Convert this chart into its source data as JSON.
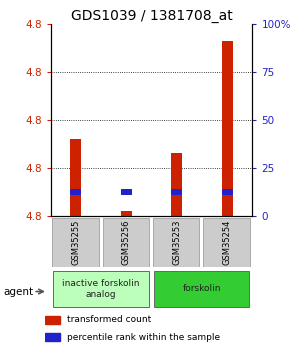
{
  "title": "GDS1039 / 1381708_at",
  "samples": [
    "GSM35255",
    "GSM35256",
    "GSM35253",
    "GSM35254"
  ],
  "y_min": 4.76,
  "y_max": 4.84,
  "y_ticks_left": [
    4.76,
    4.78,
    4.8,
    4.82,
    4.84
  ],
  "y_ticks_right": [
    0,
    25,
    50,
    75,
    100
  ],
  "y_ticks_right_labels": [
    "0",
    "25",
    "50",
    "75",
    "100%"
  ],
  "red_values": [
    4.792,
    4.762,
    4.786,
    4.833
  ],
  "blue_values": [
    4.77,
    4.77,
    4.77,
    4.77
  ],
  "bar_bottom": 4.76,
  "red_color": "#cc2200",
  "blue_color": "#2222cc",
  "groups": [
    {
      "label": "inactive forskolin\nanalog",
      "samples": [
        0,
        1
      ],
      "color": "#bbffbb"
    },
    {
      "label": "forskolin",
      "samples": [
        2,
        3
      ],
      "color": "#33cc33"
    }
  ],
  "agent_label": "agent",
  "legend_red": "transformed count",
  "legend_blue": "percentile rank within the sample",
  "title_fontsize": 10,
  "tick_fontsize": 7.5,
  "left_tick_color": "#cc2200",
  "right_tick_color": "#2222cc",
  "bg_color": "#ffffff",
  "grid_color": "#000000",
  "gsm_box_color": "#cccccc",
  "gsm_box_edge": "#aaaaaa"
}
